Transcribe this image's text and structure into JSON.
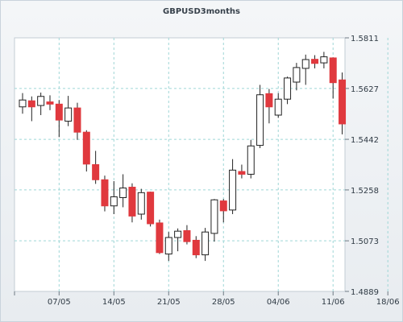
{
  "chart_data": {
    "type": "candlestick",
    "title": "GBPUSD3months",
    "xlabel": "",
    "ylabel": "",
    "ylim": [
      1.4889,
      1.5811
    ],
    "y_ticks": [
      "1.4889",
      "1.5073",
      "1.5258",
      "1.5442",
      "1.5627",
      "1.5811"
    ],
    "x_ticks": [
      "07/05",
      "14/05",
      "21/05",
      "28/05",
      "04/06",
      "11/06",
      "18/06"
    ],
    "grid": true,
    "up_color": "#ffffff",
    "down_color": "#e0393e",
    "candles": [
      {
        "o": 1.556,
        "h": 1.561,
        "l": 1.5535,
        "c": 1.5585
      },
      {
        "o": 1.5582,
        "h": 1.5598,
        "l": 1.5508,
        "c": 1.556
      },
      {
        "o": 1.5565,
        "h": 1.5612,
        "l": 1.553,
        "c": 1.5598
      },
      {
        "o": 1.5578,
        "h": 1.5602,
        "l": 1.5548,
        "c": 1.557
      },
      {
        "o": 1.557,
        "h": 1.5585,
        "l": 1.545,
        "c": 1.5512
      },
      {
        "o": 1.5508,
        "h": 1.56,
        "l": 1.549,
        "c": 1.5556
      },
      {
        "o": 1.5556,
        "h": 1.5575,
        "l": 1.544,
        "c": 1.5468
      },
      {
        "o": 1.5468,
        "h": 1.5475,
        "l": 1.5325,
        "c": 1.5352
      },
      {
        "o": 1.535,
        "h": 1.54,
        "l": 1.528,
        "c": 1.5295
      },
      {
        "o": 1.5295,
        "h": 1.531,
        "l": 1.518,
        "c": 1.52
      },
      {
        "o": 1.52,
        "h": 1.529,
        "l": 1.517,
        "c": 1.5233
      },
      {
        "o": 1.523,
        "h": 1.5315,
        "l": 1.5195,
        "c": 1.5265
      },
      {
        "o": 1.5268,
        "h": 1.5282,
        "l": 1.514,
        "c": 1.5163
      },
      {
        "o": 1.517,
        "h": 1.5262,
        "l": 1.515,
        "c": 1.5248
      },
      {
        "o": 1.525,
        "h": 1.5252,
        "l": 1.5125,
        "c": 1.5135
      },
      {
        "o": 1.5138,
        "h": 1.515,
        "l": 1.5025,
        "c": 1.503
      },
      {
        "o": 1.5025,
        "h": 1.5105,
        "l": 1.5,
        "c": 1.5085
      },
      {
        "o": 1.5085,
        "h": 1.5118,
        "l": 1.5035,
        "c": 1.5108
      },
      {
        "o": 1.511,
        "h": 1.513,
        "l": 1.506,
        "c": 1.507
      },
      {
        "o": 1.5075,
        "h": 1.509,
        "l": 1.501,
        "c": 1.5022
      },
      {
        "o": 1.5022,
        "h": 1.512,
        "l": 1.5,
        "c": 1.5105
      },
      {
        "o": 1.51,
        "h": 1.5225,
        "l": 1.507,
        "c": 1.5222
      },
      {
        "o": 1.5218,
        "h": 1.5225,
        "l": 1.514,
        "c": 1.5182
      },
      {
        "o": 1.5185,
        "h": 1.537,
        "l": 1.517,
        "c": 1.533
      },
      {
        "o": 1.5325,
        "h": 1.535,
        "l": 1.53,
        "c": 1.5315
      },
      {
        "o": 1.5315,
        "h": 1.544,
        "l": 1.53,
        "c": 1.5418
      },
      {
        "o": 1.542,
        "h": 1.564,
        "l": 1.541,
        "c": 1.5604
      },
      {
        "o": 1.5608,
        "h": 1.5625,
        "l": 1.55,
        "c": 1.556
      },
      {
        "o": 1.553,
        "h": 1.561,
        "l": 1.552,
        "c": 1.5588
      },
      {
        "o": 1.5588,
        "h": 1.567,
        "l": 1.557,
        "c": 1.5665
      },
      {
        "o": 1.565,
        "h": 1.572,
        "l": 1.562,
        "c": 1.5703
      },
      {
        "o": 1.57,
        "h": 1.575,
        "l": 1.564,
        "c": 1.5732
      },
      {
        "o": 1.5733,
        "h": 1.5748,
        "l": 1.57,
        "c": 1.5718
      },
      {
        "o": 1.572,
        "h": 1.576,
        "l": 1.57,
        "c": 1.5742
      },
      {
        "o": 1.5738,
        "h": 1.574,
        "l": 1.559,
        "c": 1.5648
      },
      {
        "o": 1.5658,
        "h": 1.5685,
        "l": 1.546,
        "c": 1.5498
      }
    ]
  }
}
